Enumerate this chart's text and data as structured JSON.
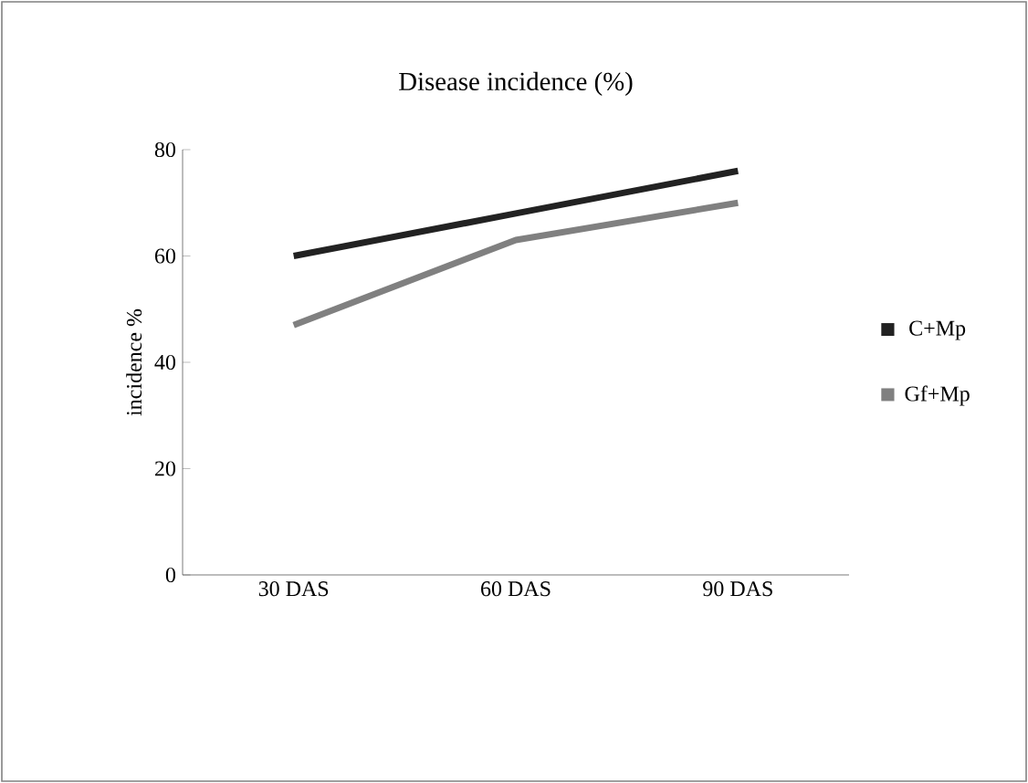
{
  "chart_data": {
    "type": "line",
    "title": "Disease incidence (%)",
    "ylabel": "incidence %",
    "categories": [
      "30 DAS",
      "60 DAS",
      "90 DAS"
    ],
    "series": [
      {
        "name": "C+Mp",
        "color": "#222222",
        "values": [
          60,
          68,
          76
        ]
      },
      {
        "name": "Gf+Mp",
        "color": "#808080",
        "values": [
          47,
          63,
          70
        ]
      }
    ],
    "ylim": [
      0,
      80
    ],
    "yticks": [
      0,
      20,
      40,
      60,
      80
    ],
    "legend": "right",
    "marker": "none",
    "line_style": "solid"
  }
}
